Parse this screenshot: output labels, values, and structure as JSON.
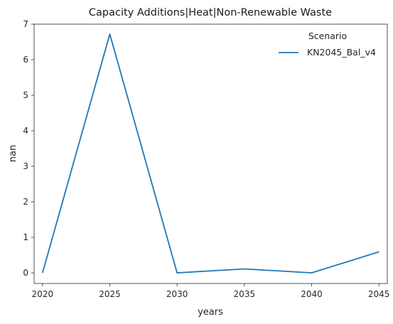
{
  "chart_data": {
    "type": "line",
    "title": "Capacity Additions|Heat|Non-Renewable Waste",
    "xlabel": "years",
    "ylabel": "nan",
    "x": [
      2020,
      2025,
      2030,
      2035,
      2040,
      2045
    ],
    "xticks": [
      "2020",
      "2025",
      "2030",
      "2035",
      "2040",
      "2045"
    ],
    "yticks": [
      "0",
      "1",
      "2",
      "3",
      "4",
      "5",
      "6",
      "7"
    ],
    "xlim": [
      2019.375,
      2045.625
    ],
    "ylim": [
      -0.3,
      7.0
    ],
    "grid": false,
    "legend": {
      "title": "Scenario",
      "placement": "top-right"
    },
    "series": [
      {
        "name": "KN2045_Bal_v4",
        "color": "#1f77b4",
        "values": [
          0.0,
          6.72,
          0.0,
          0.11,
          0.0,
          0.59
        ]
      }
    ]
  }
}
